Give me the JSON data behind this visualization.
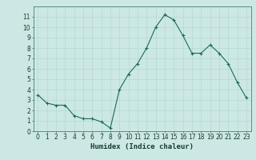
{
  "x": [
    0,
    1,
    2,
    3,
    4,
    5,
    6,
    7,
    8,
    9,
    10,
    11,
    12,
    13,
    14,
    15,
    16,
    17,
    18,
    19,
    20,
    21,
    22,
    23
  ],
  "y": [
    3.5,
    2.7,
    2.5,
    2.5,
    1.5,
    1.2,
    1.2,
    0.9,
    0.3,
    4.0,
    5.5,
    6.5,
    8.0,
    10.0,
    11.2,
    10.7,
    9.2,
    7.5,
    7.5,
    8.3,
    7.5,
    6.5,
    4.7,
    3.2
  ],
  "line_color": "#1a6b5a",
  "marker": "+",
  "marker_size": 3,
  "bg_color": "#cce8e4",
  "grid_color": "#aed4cf",
  "xlabel": "Humidex (Indice chaleur)",
  "ylim": [
    0,
    12
  ],
  "xlim": [
    -0.5,
    23.5
  ],
  "yticks": [
    0,
    1,
    2,
    3,
    4,
    5,
    6,
    7,
    8,
    9,
    10,
    11
  ],
  "xticks": [
    0,
    1,
    2,
    3,
    4,
    5,
    6,
    7,
    8,
    9,
    10,
    11,
    12,
    13,
    14,
    15,
    16,
    17,
    18,
    19,
    20,
    21,
    22,
    23
  ],
  "tick_color": "#1a3a30",
  "axis_color": "#2d6b5a",
  "tick_fontsize": 5.5,
  "xlabel_fontsize": 6.5
}
